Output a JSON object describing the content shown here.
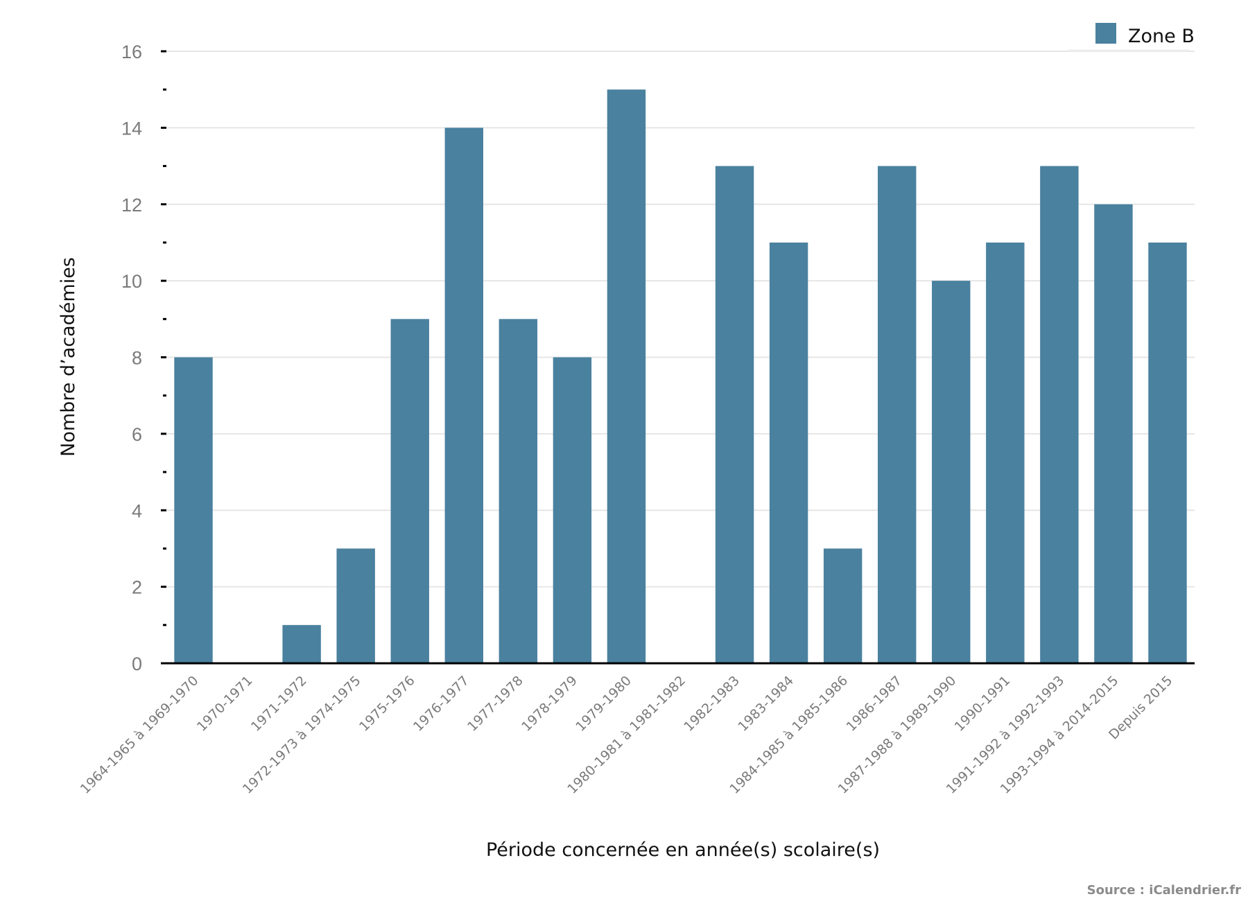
{
  "chart_data": {
    "type": "bar",
    "title": "",
    "xlabel": "Période concernée en année(s) scolaire(s)",
    "ylabel": "Nombre d’académies",
    "ylim": [
      0,
      16
    ],
    "yticks": [
      0,
      2,
      4,
      6,
      8,
      10,
      12,
      14,
      16
    ],
    "yminor_step": 1,
    "grid": true,
    "legend": {
      "position": "top-right",
      "entries": [
        "Zone B"
      ]
    },
    "categories": [
      "1964-1965 à 1969-1970",
      "1970-1971",
      "1971-1972",
      "1972-1973 à 1974-1975",
      "1975-1976",
      "1976-1977",
      "1977-1978",
      "1978-1979",
      "1979-1980",
      "1980-1981 à 1981-1982",
      "1982-1983",
      "1983-1984",
      "1984-1985 à 1985-1986",
      "1986-1987",
      "1987-1988 à 1989-1990",
      "1990-1991",
      "1991-1992 à 1992-1993",
      "1993-1994 à 2014-2015",
      "Depuis 2015"
    ],
    "series": [
      {
        "name": "Zone B",
        "color": "#4a819f",
        "values": [
          8,
          0,
          1,
          3,
          9,
          14,
          9,
          8,
          15,
          0,
          13,
          11,
          3,
          13,
          10,
          11,
          13,
          12,
          11
        ]
      }
    ],
    "source": "Source : iCalendrier.fr"
  }
}
